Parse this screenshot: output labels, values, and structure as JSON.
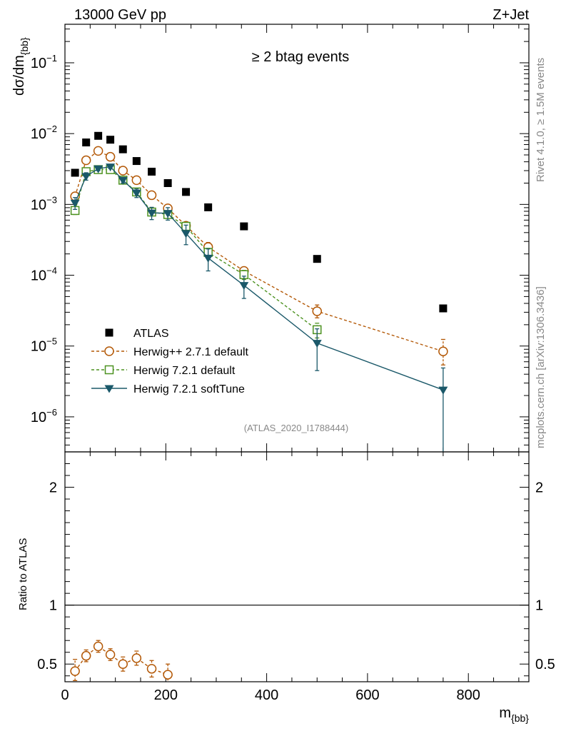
{
  "header": {
    "left": "13000 GeV pp",
    "right": "Z+Jet"
  },
  "side_labels": {
    "rivet": "Rivet 4.1.0, ≥ 1.5M events",
    "mcplots": "mcplots.cern.ch [arXiv:1306.3436]"
  },
  "chart_data": [
    {
      "type": "scatter",
      "panel": "main",
      "title": "≥ 2 btag events",
      "ylabel_main": "dσ/dm",
      "ylabel_sub": "{bb}",
      "xlabel_main": "m",
      "xlabel_sub": "{bb}",
      "watermark": "(ATLAS_2020_I1788444)",
      "y_scale": "log",
      "xlim": [
        0,
        920
      ],
      "ylim": [
        3.2e-07,
        0.35
      ],
      "x_ticks": [
        0,
        200,
        400,
        600,
        800
      ],
      "x_tick_labels": [
        "0",
        "200",
        "400",
        "600",
        "800"
      ],
      "y_decades": [
        {
          "value": 1e-06,
          "base": "10",
          "exp": "−6"
        },
        {
          "value": 1e-05,
          "base": "10",
          "exp": "−5"
        },
        {
          "value": 0.0001,
          "base": "10",
          "exp": "−4"
        },
        {
          "value": 0.001,
          "base": "10",
          "exp": "−3"
        },
        {
          "value": 0.01,
          "base": "10",
          "exp": "−2"
        },
        {
          "value": 0.1,
          "base": "10",
          "exp": "−1"
        }
      ],
      "legend_position": "lower-left",
      "series": [
        {
          "name": "ATLAS",
          "color": "#000000",
          "marker": "filled-square",
          "line": "none",
          "x": [
            20,
            42,
            66,
            90,
            115,
            142,
            172,
            204,
            240,
            284,
            355,
            500,
            750
          ],
          "y": [
            0.0028,
            0.0075,
            0.0093,
            0.0082,
            0.006,
            0.0041,
            0.0029,
            0.002,
            0.0015,
            0.00091,
            0.00049,
            0.00017,
            3.4e-05
          ],
          "yerr_lo": [
            0,
            0,
            0,
            0,
            0,
            0,
            0,
            0,
            0,
            0,
            0,
            0,
            0
          ],
          "yerr_hi": [
            0,
            0,
            0,
            0,
            0,
            0,
            0,
            0,
            0,
            0,
            0,
            0,
            0
          ]
        },
        {
          "name": "Herwig++ 2.7.1 default",
          "color": "#b35806",
          "marker": "open-circle",
          "line": "dashed",
          "x": [
            20,
            42,
            66,
            90,
            115,
            142,
            172,
            204,
            240,
            284,
            355,
            500,
            750
          ],
          "y": [
            0.0013,
            0.0042,
            0.0057,
            0.0047,
            0.003,
            0.0022,
            0.00135,
            0.00088,
            0.0005,
            0.00025,
            0.000115,
            3.1e-05,
            8.4e-06
          ],
          "yerr_lo": [
            0.0001,
            0.0003,
            0.0003,
            0.0003,
            0.0002,
            0.00015,
            0.0001,
            7e-05,
            6e-05,
            4e-05,
            1.5e-05,
            6e-06,
            3e-06
          ],
          "yerr_hi": [
            0.0001,
            0.0003,
            0.0003,
            0.0003,
            0.0002,
            0.00015,
            0.0001,
            7e-05,
            6e-05,
            4e-05,
            1.5e-05,
            7e-06,
            4e-06
          ]
        },
        {
          "name": "Herwig 7.2.1 default",
          "color": "#4d9221",
          "marker": "open-square",
          "line": "dashed",
          "x": [
            20,
            42,
            66,
            90,
            115,
            142,
            172,
            204,
            240,
            284,
            355,
            500
          ],
          "y": [
            0.00082,
            0.0029,
            0.0031,
            0.0031,
            0.0022,
            0.0015,
            0.00078,
            0.00072,
            0.00049,
            0.00021,
            0.000102,
            1.7e-05
          ],
          "yerr_lo": [
            0.0001,
            0.0002,
            0.0002,
            0.0002,
            0.00015,
            0.0001,
            8e-05,
            8e-05,
            5e-05,
            3e-05,
            1.5e-05,
            4e-06
          ],
          "yerr_hi": [
            0.0001,
            0.0002,
            0.0002,
            0.0002,
            0.00015,
            0.0001,
            8e-05,
            8e-05,
            5e-05,
            3e-05,
            1.5e-05,
            4e-06
          ]
        },
        {
          "name": "Herwig 7.2.1 softTune",
          "color": "#1a5869",
          "marker": "filled-triangle-down",
          "line": "solid",
          "x": [
            20,
            42,
            66,
            90,
            115,
            142,
            172,
            204,
            240,
            284,
            355,
            500,
            750
          ],
          "y": [
            0.00105,
            0.0025,
            0.0032,
            0.0034,
            0.0022,
            0.00145,
            0.00076,
            0.00075,
            0.00039,
            0.000175,
            7.2e-05,
            1.1e-05,
            2.4e-06
          ],
          "yerr_lo": [
            0.0002,
            0.0003,
            0.0002,
            0.0002,
            0.0002,
            0.0002,
            0.00015,
            0.00015,
            0.00012,
            6e-05,
            2.5e-05,
            6.5e-06,
            2.2e-06
          ],
          "yerr_hi": [
            0.0002,
            0.0003,
            0.0002,
            0.0002,
            0.0002,
            0.0002,
            0.00015,
            0.00015,
            0.00012,
            6e-05,
            2.5e-05,
            6.5e-06,
            2.5e-06
          ]
        }
      ]
    },
    {
      "type": "scatter",
      "panel": "ratio",
      "ylabel": "Ratio to ATLAS",
      "xlim": [
        0,
        920
      ],
      "ylim": [
        0.35,
        2.3
      ],
      "y_ticks": [
        0.5,
        1,
        2
      ],
      "y_tick_labels": [
        "0.5",
        "1",
        "2"
      ],
      "reference_line": 1,
      "series": [
        {
          "name": "Herwig++ 2.7.1 default",
          "color": "#b35806",
          "marker": "open-circle",
          "line": "dashed",
          "x": [
            20,
            42,
            66,
            90,
            115,
            142,
            172,
            204
          ],
          "y": [
            0.44,
            0.57,
            0.65,
            0.58,
            0.5,
            0.55,
            0.46,
            0.41
          ],
          "yerr_lo": [
            0.08,
            0.05,
            0.05,
            0.05,
            0.06,
            0.06,
            0.07,
            0.08
          ],
          "yerr_hi": [
            0.1,
            0.05,
            0.05,
            0.05,
            0.06,
            0.06,
            0.07,
            0.09
          ]
        }
      ]
    }
  ]
}
